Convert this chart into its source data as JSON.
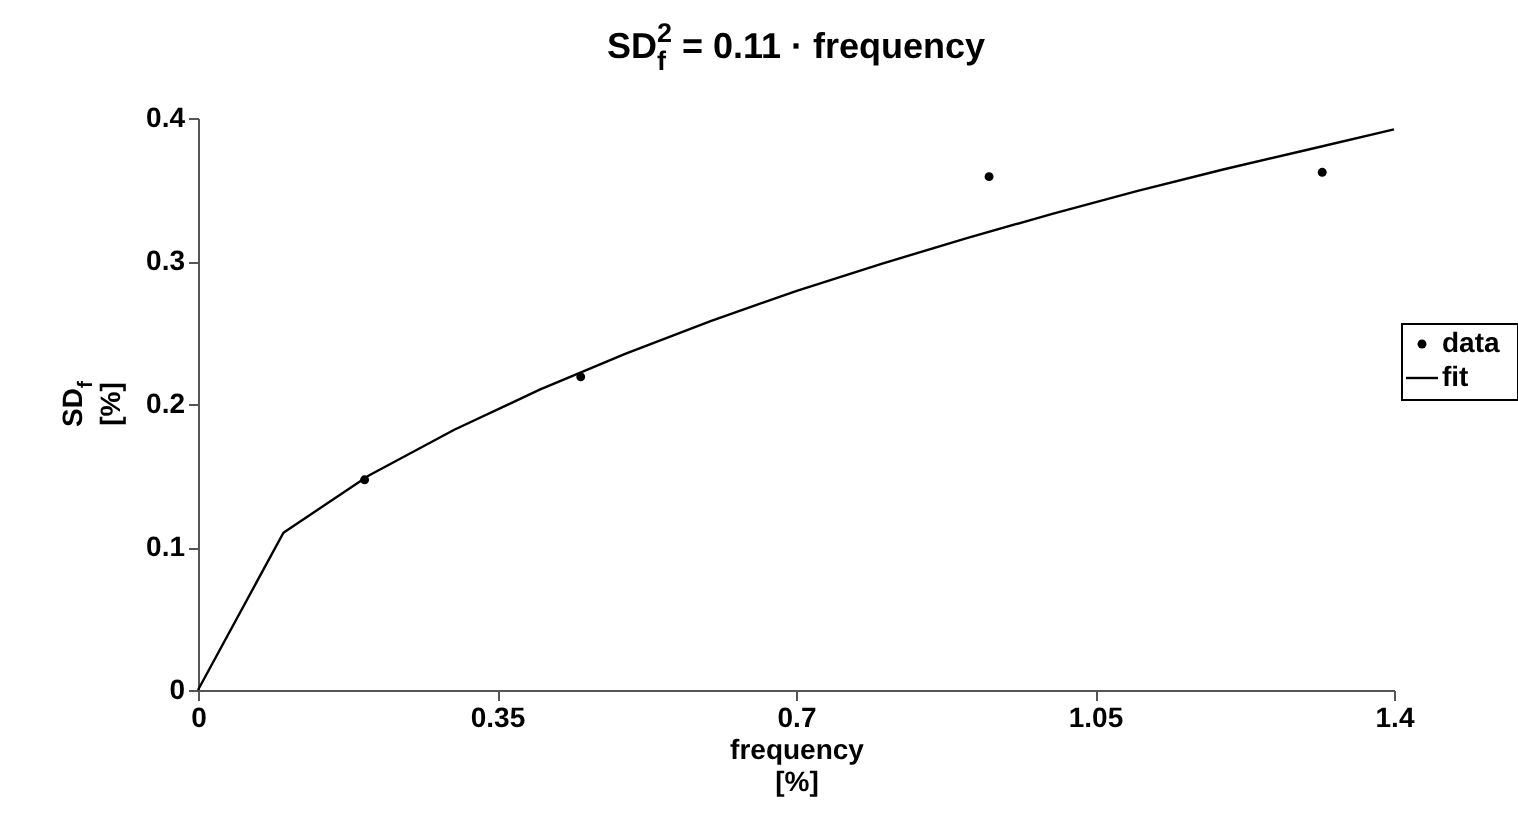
{
  "chart_data": {
    "type": "scatter",
    "title": "SD$_{f}$$^{2}$ = 0.11 · frequency",
    "xlabel": "frequency\n[%]",
    "ylabel": "SD$_{f}$\n[%]",
    "xlim": [
      0,
      1.4
    ],
    "xticks": [
      0,
      0.35,
      0.7,
      1.05,
      1.4
    ],
    "ylim": [
      0,
      0.4
    ],
    "yticks": [
      0,
      0.1,
      0.2,
      0.3,
      0.4
    ],
    "grid": false,
    "legend": "right",
    "series": [
      {
        "name": "data",
        "marker": "circle",
        "color": "#000000",
        "x": [
          0.195,
          0.448,
          0.926,
          1.316
        ],
        "values": [
          0.147,
          0.219,
          0.359,
          0.362
        ]
      },
      {
        "name": "fit",
        "type": "line",
        "color": "#000000",
        "line_style": "solid",
        "x": [
          0,
          0.1,
          0.2,
          0.3,
          0.4,
          0.5,
          0.6,
          0.7,
          0.8,
          0.9,
          1.0,
          1.1,
          1.2,
          1.3,
          1.4
        ],
        "values": [
          0,
          0.11,
          0.15,
          0.182,
          0.21,
          0.235,
          0.258,
          0.279,
          0.298,
          0.316,
          0.333,
          0.349,
          0.364,
          0.378,
          0.392
        ]
      }
    ]
  }
}
